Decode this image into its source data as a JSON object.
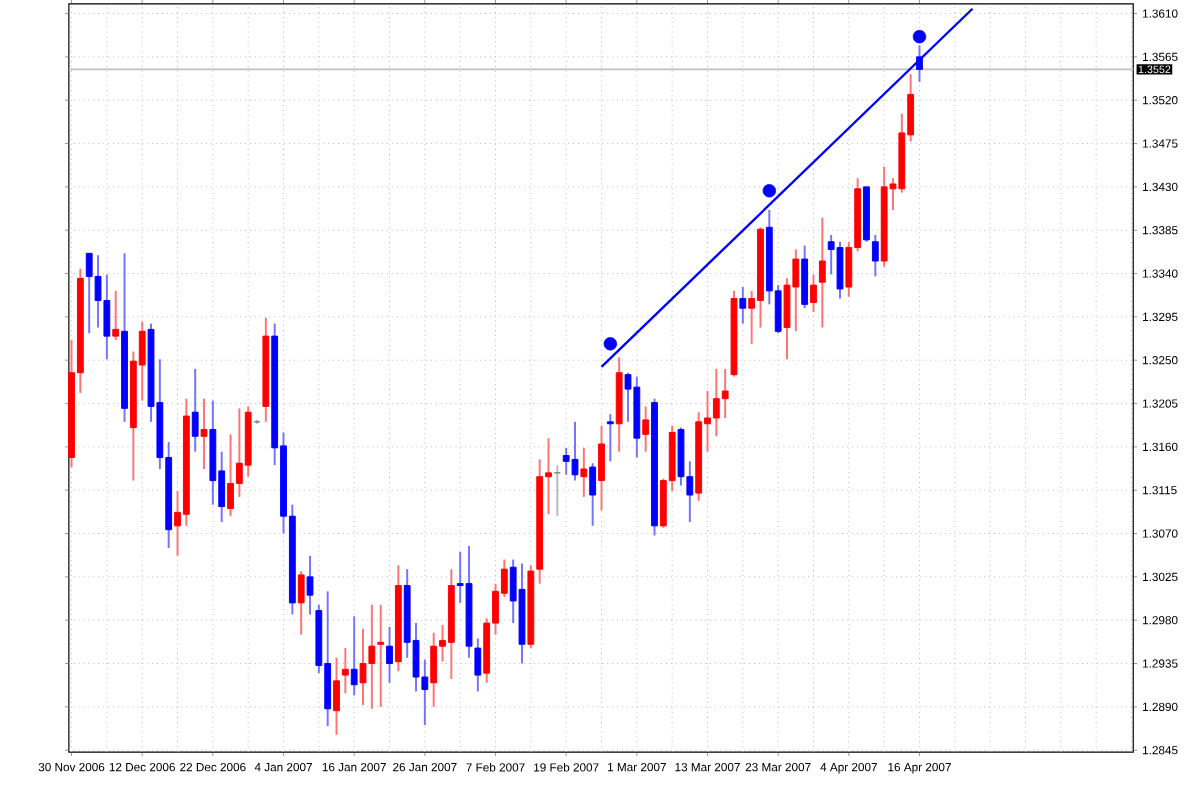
{
  "chart_data": {
    "type": "candlestick",
    "categories": [
      "30 Nov 2006",
      null,
      null,
      null,
      null,
      null,
      null,
      null,
      "12 Dec 2006",
      null,
      null,
      null,
      null,
      null,
      null,
      null,
      "22 Dec 2006",
      null,
      null,
      null,
      null,
      null,
      null,
      null,
      "4 Jan 2007",
      null,
      null,
      null,
      null,
      null,
      null,
      null,
      "16 Jan 2007",
      null,
      null,
      null,
      null,
      null,
      null,
      null,
      "26 Jan 2007",
      null,
      null,
      null,
      null,
      null,
      null,
      null,
      "7 Feb 2007",
      null,
      null,
      null,
      null,
      null,
      null,
      null,
      "19 Feb 2007",
      null,
      null,
      null,
      null,
      null,
      null,
      null,
      "1 Mar 2007",
      null,
      null,
      null,
      null,
      null,
      null,
      null,
      "13 Mar 2007",
      null,
      null,
      null,
      null,
      null,
      null,
      null,
      "23 Mar 2007",
      null,
      null,
      null,
      null,
      null,
      null,
      null,
      "4 Apr 2007",
      null,
      null,
      null,
      null,
      null,
      null,
      null,
      "16 Apr 2007",
      null,
      null,
      null,
      null,
      null,
      null,
      null,
      null,
      null,
      null,
      null,
      null,
      null,
      null,
      null,
      null,
      null,
      null,
      null,
      null,
      null,
      null,
      null,
      null
    ],
    "ohlc": [
      [
        1.3149,
        1.3271,
        1.3139,
        1.3237
      ],
      [
        1.3237,
        1.3345,
        1.3216,
        1.3335
      ],
      [
        1.3361,
        1.3361,
        1.3278,
        1.3337
      ],
      [
        1.3337,
        1.3359,
        1.3284,
        1.3312
      ],
      [
        1.3312,
        1.3339,
        1.3251,
        1.3275
      ],
      [
        1.3275,
        1.3322,
        1.3271,
        1.3282
      ],
      [
        1.328,
        1.3361,
        1.3186,
        1.32
      ],
      [
        1.318,
        1.3259,
        1.3125,
        1.3249
      ],
      [
        1.3245,
        1.329,
        1.3208,
        1.328
      ],
      [
        1.3282,
        1.3288,
        1.3186,
        1.3202
      ],
      [
        1.3206,
        1.3251,
        1.3137,
        1.3149
      ],
      [
        1.3149,
        1.3165,
        1.3055,
        1.3074
      ],
      [
        1.3078,
        1.3114,
        1.3047,
        1.3092
      ],
      [
        1.309,
        1.321,
        1.3078,
        1.3192
      ],
      [
        1.3196,
        1.3241,
        1.3155,
        1.3171
      ],
      [
        1.3171,
        1.321,
        1.3137,
        1.3178
      ],
      [
        1.3178,
        1.3208,
        1.31,
        1.3125
      ],
      [
        1.3135,
        1.3155,
        1.3082,
        1.3098
      ],
      [
        1.3096,
        1.3173,
        1.3088,
        1.3122
      ],
      [
        1.3122,
        1.32,
        1.3108,
        1.3143
      ],
      [
        1.3141,
        1.3202,
        1.3129,
        1.3196
      ],
      [
        1.3186,
        1.3188,
        1.3184,
        1.3186
      ],
      [
        1.3202,
        1.3294,
        1.3186,
        1.3275
      ],
      [
        1.3275,
        1.3288,
        1.3141,
        1.3159
      ],
      [
        1.3161,
        1.3175,
        1.307,
        1.3088
      ],
      [
        1.3088,
        1.31,
        1.2986,
        1.2998
      ],
      [
        1.2998,
        1.3031,
        1.2965,
        1.3027
      ],
      [
        1.3025,
        1.3047,
        1.2986,
        1.3006
      ],
      [
        1.299,
        1.2996,
        1.2925,
        1.2933
      ],
      [
        1.2935,
        1.301,
        1.287,
        1.2888
      ],
      [
        1.2886,
        1.2941,
        1.2861,
        1.2917
      ],
      [
        1.2923,
        1.2951,
        1.2904,
        1.2929
      ],
      [
        1.2929,
        1.2984,
        1.2902,
        1.2913
      ],
      [
        1.2915,
        1.2971,
        1.2892,
        1.2935
      ],
      [
        1.2935,
        1.2996,
        1.2888,
        1.2953
      ],
      [
        1.2955,
        1.2996,
        1.289,
        1.2957
      ],
      [
        1.2953,
        1.2973,
        1.2915,
        1.2935
      ],
      [
        1.2937,
        1.3037,
        1.2927,
        1.3016
      ],
      [
        1.3016,
        1.3033,
        1.2941,
        1.2957
      ],
      [
        1.2959,
        1.2977,
        1.2906,
        1.2921
      ],
      [
        1.2921,
        1.2939,
        1.2871,
        1.2908
      ],
      [
        1.2915,
        1.2967,
        1.289,
        1.2953
      ],
      [
        1.2953,
        1.2975,
        1.2937,
        1.2959
      ],
      [
        1.2957,
        1.3033,
        1.2919,
        1.3016
      ],
      [
        1.3018,
        1.3051,
        1.2998,
        1.3016
      ],
      [
        1.3018,
        1.3057,
        1.2941,
        1.2953
      ],
      [
        1.2951,
        1.2961,
        1.2906,
        1.2923
      ],
      [
        1.2925,
        1.2982,
        1.2915,
        1.2977
      ],
      [
        1.2977,
        1.3018,
        1.2965,
        1.301
      ],
      [
        1.3008,
        1.3043,
        1.3004,
        1.3033
      ],
      [
        1.3035,
        1.3043,
        1.2977,
        1.3
      ],
      [
        1.3012,
        1.3039,
        1.2935,
        1.2955
      ],
      [
        1.2955,
        1.3037,
        1.2951,
        1.3031
      ],
      [
        1.3033,
        1.3147,
        1.3018,
        1.3129
      ],
      [
        1.3129,
        1.3169,
        1.309,
        1.3133
      ],
      [
        1.3133,
        1.3141,
        1.3088,
        1.3133
      ],
      [
        1.3151,
        1.3159,
        1.3131,
        1.3145
      ],
      [
        1.3147,
        1.3186,
        1.3125,
        1.3131
      ],
      [
        1.3129,
        1.3159,
        1.3108,
        1.3137
      ],
      [
        1.3139,
        1.3143,
        1.3078,
        1.311
      ],
      [
        1.3125,
        1.3182,
        1.3094,
        1.3163
      ],
      [
        1.3186,
        1.3194,
        1.3145,
        1.3184
      ],
      [
        1.3184,
        1.3253,
        1.3155,
        1.3237
      ],
      [
        1.3235,
        1.3237,
        1.3186,
        1.322
      ],
      [
        1.3222,
        1.3233,
        1.3149,
        1.3169
      ],
      [
        1.3173,
        1.3202,
        1.3155,
        1.3188
      ],
      [
        1.3206,
        1.321,
        1.3068,
        1.3078
      ],
      [
        1.3078,
        1.3127,
        1.3076,
        1.3125
      ],
      [
        1.3125,
        1.3182,
        1.3114,
        1.3175
      ],
      [
        1.3178,
        1.318,
        1.312,
        1.3129
      ],
      [
        1.3129,
        1.3145,
        1.3082,
        1.311
      ],
      [
        1.3112,
        1.3196,
        1.3104,
        1.3186
      ],
      [
        1.3184,
        1.3218,
        1.3155,
        1.319
      ],
      [
        1.319,
        1.3241,
        1.3171,
        1.321
      ],
      [
        1.321,
        1.3241,
        1.319,
        1.3218
      ],
      [
        1.3235,
        1.3322,
        1.3233,
        1.3314
      ],
      [
        1.3314,
        1.3326,
        1.3288,
        1.3304
      ],
      [
        1.3304,
        1.3322,
        1.3267,
        1.3314
      ],
      [
        1.3312,
        1.3388,
        1.3284,
        1.3386
      ],
      [
        1.3388,
        1.3406,
        1.3308,
        1.3322
      ],
      [
        1.3322,
        1.3328,
        1.3278,
        1.328
      ],
      [
        1.3284,
        1.3335,
        1.3251,
        1.3328
      ],
      [
        1.3326,
        1.3365,
        1.328,
        1.3355
      ],
      [
        1.3355,
        1.3369,
        1.3304,
        1.3308
      ],
      [
        1.331,
        1.3339,
        1.33,
        1.3328
      ],
      [
        1.3331,
        1.3398,
        1.3284,
        1.3353
      ],
      [
        1.3373,
        1.338,
        1.3339,
        1.3365
      ],
      [
        1.3367,
        1.3373,
        1.3314,
        1.3324
      ],
      [
        1.3326,
        1.3373,
        1.3316,
        1.3367
      ],
      [
        1.3367,
        1.3439,
        1.3363,
        1.3428
      ],
      [
        1.343,
        1.343,
        1.3373,
        1.3375
      ],
      [
        1.3373,
        1.338,
        1.3337,
        1.3353
      ],
      [
        1.3353,
        1.3451,
        1.3347,
        1.343
      ],
      [
        1.3428,
        1.3439,
        1.3406,
        1.3433
      ],
      [
        1.3428,
        1.3506,
        1.3424,
        1.3486
      ],
      [
        1.3484,
        1.3547,
        1.3477,
        1.3526
      ],
      [
        1.3565,
        1.3577,
        1.3539,
        1.3552
      ],
      null,
      null,
      null,
      null,
      null,
      null,
      null,
      null,
      null,
      null,
      null,
      null,
      null,
      null,
      null,
      null,
      null,
      null,
      null,
      null,
      null,
      null,
      null,
      null
    ],
    "colors": [
      "#ff0000",
      "#ff0000",
      "#0000ff",
      "#0000ff",
      "#0000ff",
      "#ff0000",
      "#0000ff",
      "#ff0000",
      "#ff0000",
      "#0000ff",
      "#0000ff",
      "#0000ff",
      "#ff0000",
      "#ff0000",
      "#0000ff",
      "#ff0000",
      "#0000ff",
      "#0000ff",
      "#ff0000",
      "#ff0000",
      "#ff0000",
      "#808080",
      "#ff0000",
      "#0000ff",
      "#0000ff",
      "#0000ff",
      "#ff0000",
      "#0000ff",
      "#0000ff",
      "#0000ff",
      "#ff0000",
      "#ff0000",
      "#0000ff",
      "#ff0000",
      "#ff0000",
      "#ff0000",
      "#0000ff",
      "#ff0000",
      "#0000ff",
      "#0000ff",
      "#0000ff",
      "#ff0000",
      "#ff0000",
      "#ff0000",
      "#0000ff",
      "#0000ff",
      "#0000ff",
      "#ff0000",
      "#ff0000",
      "#ff0000",
      "#0000ff",
      "#0000ff",
      "#ff0000",
      "#ff0000",
      "#ff0000",
      "#808080",
      "#0000ff",
      "#0000ff",
      "#ff0000",
      "#0000ff",
      "#ff0000",
      "#0000ff",
      "#ff0000",
      "#0000ff",
      "#0000ff",
      "#ff0000",
      "#0000ff",
      "#ff0000",
      "#ff0000",
      "#0000ff",
      "#0000ff",
      "#ff0000",
      "#ff0000",
      "#ff0000",
      "#ff0000",
      "#ff0000",
      "#0000ff",
      "#ff0000",
      "#ff0000",
      "#0000ff",
      "#0000ff",
      "#ff0000",
      "#ff0000",
      "#0000ff",
      "#ff0000",
      "#ff0000",
      "#0000ff",
      "#0000ff",
      "#ff0000",
      "#ff0000",
      "#0000ff",
      "#0000ff",
      "#ff0000",
      "#ff0000",
      "#ff0000",
      "#ff0000",
      "#0000ff",
      null,
      null,
      null,
      null,
      null,
      null,
      null,
      null,
      null,
      null,
      null,
      null,
      null,
      null,
      null,
      null,
      null,
      null,
      null,
      null,
      null,
      null,
      null,
      null
    ],
    "series": [
      {
        "type": "line",
        "color": "#0000ff",
        "marker": "none",
        "values": [
          null,
          null,
          null,
          null,
          null,
          null,
          null,
          null,
          null,
          null,
          null,
          null,
          null,
          null,
          null,
          null,
          null,
          null,
          null,
          null,
          null,
          null,
          null,
          null,
          null,
          null,
          null,
          null,
          null,
          null,
          null,
          null,
          null,
          null,
          null,
          null,
          null,
          null,
          null,
          null,
          null,
          null,
          null,
          null,
          null,
          null,
          null,
          null,
          null,
          null,
          null,
          null,
          null,
          null,
          null,
          null,
          null,
          null,
          null,
          null,
          1.3243,
          null,
          null,
          null,
          null,
          null,
          null,
          null,
          null,
          null,
          null,
          null,
          null,
          null,
          null,
          null,
          null,
          null,
          null,
          null,
          null,
          null,
          null,
          null,
          null,
          null,
          null,
          null,
          null,
          null,
          null,
          null,
          null,
          null,
          null,
          null,
          null,
          null,
          null,
          null,
          null,
          null,
          1.3615,
          null,
          null,
          null,
          null,
          null,
          null,
          null,
          null,
          null,
          null,
          null,
          null,
          null,
          null,
          null,
          null,
          null,
          null
        ]
      },
      {
        "type": "scatter",
        "color": "#0000ff",
        "marker": "circle",
        "values": [
          null,
          null,
          null,
          null,
          null,
          null,
          null,
          null,
          null,
          null,
          null,
          null,
          null,
          null,
          null,
          null,
          null,
          null,
          null,
          null,
          null,
          null,
          null,
          null,
          null,
          null,
          null,
          null,
          null,
          null,
          null,
          null,
          null,
          null,
          null,
          null,
          null,
          null,
          null,
          null,
          null,
          null,
          null,
          null,
          null,
          null,
          null,
          null,
          null,
          null,
          null,
          null,
          null,
          null,
          null,
          null,
          null,
          null,
          null,
          null,
          null,
          1.3267,
          null,
          null,
          null,
          null,
          null,
          null,
          null,
          null,
          null,
          null,
          null,
          null,
          null,
          null,
          null,
          null,
          null,
          1.3426,
          null,
          null,
          null,
          null,
          null,
          null,
          null,
          null,
          null,
          null,
          null,
          null,
          null,
          null,
          null,
          null,
          1.3586,
          null,
          null,
          null,
          null,
          null,
          null,
          null,
          null,
          null,
          null,
          null,
          null,
          null,
          null,
          null,
          null,
          null,
          null,
          null,
          null,
          null,
          null,
          null,
          null
        ]
      }
    ],
    "ylim": [
      1.2843,
      1.362
    ],
    "yticks": [
      {
        "value": 1.2845,
        "label": "1.2845"
      },
      {
        "value": 1.289,
        "label": "1.2890"
      },
      {
        "value": 1.2935,
        "label": "1.2935"
      },
      {
        "value": 1.298,
        "label": "1.2980"
      },
      {
        "value": 1.3025,
        "label": "1.3025"
      },
      {
        "value": 1.307,
        "label": "1.3070"
      },
      {
        "value": 1.3115,
        "label": "1.3115"
      },
      {
        "value": 1.316,
        "label": "1.3160"
      },
      {
        "value": 1.3205,
        "label": "1.3205"
      },
      {
        "value": 1.325,
        "label": "1.3250"
      },
      {
        "value": 1.3295,
        "label": "1.3295"
      },
      {
        "value": 1.334,
        "label": "1.3340"
      },
      {
        "value": 1.3385,
        "label": "1.3385"
      },
      {
        "value": 1.343,
        "label": "1.3430"
      },
      {
        "value": 1.3475,
        "label": "1.3475"
      },
      {
        "value": 1.352,
        "label": "1.3520"
      },
      {
        "value": 1.3565,
        "label": "1.3565"
      },
      {
        "value": 1.361,
        "label": "1.3610"
      }
    ],
    "ref_lines": [
      {
        "axis": "y",
        "value": 1.3552,
        "label": "1.3552",
        "color": "#c0c0c0"
      }
    ],
    "grid": true
  }
}
